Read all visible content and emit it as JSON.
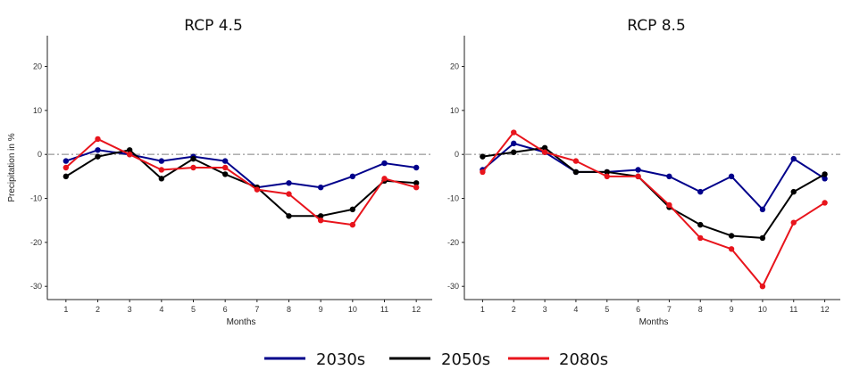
{
  "colors": {
    "2030s": "#00008b",
    "2050s": "#000000",
    "2080s": "#e8141c",
    "zero_line": "#b0b0b0"
  },
  "legend": {
    "placement": "bottom-center",
    "items": [
      {
        "label": "2030s",
        "color": "#00008b"
      },
      {
        "label": "2050s",
        "color": "#000000"
      },
      {
        "label": "2080s",
        "color": "#e8141c"
      }
    ]
  },
  "chart_data": [
    {
      "type": "line",
      "title": "RCP 4.5",
      "xlabel": "Months",
      "ylabel": "Precipitation in %",
      "x": [
        1,
        2,
        3,
        4,
        5,
        6,
        7,
        8,
        9,
        10,
        11,
        12
      ],
      "xlim": [
        0.5,
        12.5
      ],
      "ylim": [
        -33,
        27
      ],
      "yticks": [
        20,
        10,
        0,
        -10,
        -20,
        -30
      ],
      "yticks_labels": [
        "20",
        "10",
        "0",
        "-10",
        "-20",
        "-30"
      ],
      "xticks_labels": [
        "1",
        "2",
        "3",
        "4",
        "5",
        "6",
        "7",
        "8",
        "9",
        "10",
        "11",
        "12"
      ],
      "reference_line": 0,
      "series": [
        {
          "name": "2030s",
          "values": [
            -1.5,
            1,
            0,
            -1.5,
            -0.5,
            -1.5,
            -7.5,
            -6.5,
            -7.5,
            -5,
            -2,
            -3
          ]
        },
        {
          "name": "2050s",
          "values": [
            -5,
            -0.5,
            1,
            -5.5,
            -1,
            -4.5,
            -7.5,
            -14,
            -14,
            -12.5,
            -6,
            -6.5
          ]
        },
        {
          "name": "2080s",
          "values": [
            -3,
            3.5,
            0,
            -3.5,
            -3,
            -3,
            -8,
            -9,
            -15,
            -16,
            -5.5,
            -7.5
          ]
        }
      ]
    },
    {
      "type": "line",
      "title": "RCP 8.5",
      "xlabel": "Months",
      "ylabel": "",
      "x": [
        1,
        2,
        3,
        4,
        5,
        6,
        7,
        8,
        9,
        10,
        11,
        12
      ],
      "xlim": [
        0.5,
        12.5
      ],
      "ylim": [
        -33,
        27
      ],
      "yticks": [
        20,
        10,
        0,
        -10,
        -20,
        -30
      ],
      "yticks_labels": [
        "20",
        "10",
        "0",
        "-10",
        "-20",
        "-30"
      ],
      "xticks_labels": [
        "1",
        "2",
        "3",
        "4",
        "5",
        "6",
        "7",
        "8",
        "9",
        "10",
        "11",
        "12"
      ],
      "reference_line": 0,
      "series": [
        {
          "name": "2030s",
          "values": [
            -3.5,
            2.5,
            0.5,
            -4,
            -4,
            -3.5,
            -5,
            -8.5,
            -5,
            -12.5,
            -1,
            -5.5
          ]
        },
        {
          "name": "2050s",
          "values": [
            -0.5,
            0.5,
            1.5,
            -4,
            -4,
            -5,
            -12,
            -16,
            -18.5,
            -19,
            -8.5,
            -4.5
          ]
        },
        {
          "name": "2080s",
          "values": [
            -4,
            5,
            0.5,
            -1.5,
            -5,
            -5,
            -11.5,
            -19,
            -21.5,
            -30,
            -15.5,
            -11
          ]
        }
      ]
    }
  ]
}
